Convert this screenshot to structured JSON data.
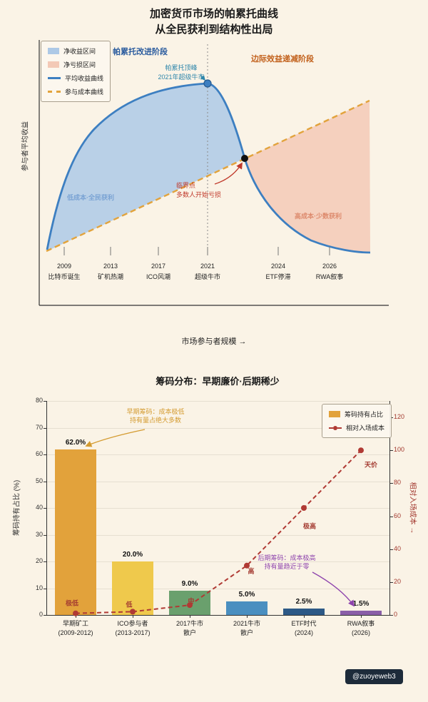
{
  "watermark": {
    "text": "@zuoyeweb3"
  },
  "chart_data": [
    {
      "type": "area",
      "title": "加密货币市场的帕累托曲线",
      "subtitle": "从全民获利到结构性出局",
      "xlabel": "市场参与者规模  →",
      "ylabel": "参与者平均收益",
      "legend": [
        "净收益区间",
        "净亏损区间",
        "平均收益曲线",
        "参与成本曲线"
      ],
      "regions": [
        {
          "name": "净收益区间",
          "color": "#adc9e6"
        },
        {
          "name": "净亏损区间",
          "color": "#f3c9b6"
        }
      ],
      "phase_labels": [
        {
          "text": "帕累托改进阶段",
          "color": "#2a5b9e"
        },
        {
          "text": "边际效益递减阶段",
          "color": "#c2611c"
        }
      ],
      "series": [
        {
          "name": "平均收益曲线",
          "style": "solid",
          "color": "#3d7fc1",
          "values_norm": [
            0.02,
            0.6,
            0.85,
            1.0,
            0.45,
            0.12
          ]
        },
        {
          "name": "参与成本曲线",
          "style": "dashed",
          "color": "#e2a33c",
          "values_norm": [
            0.0,
            0.18,
            0.36,
            0.55,
            0.75,
            0.95
          ]
        }
      ],
      "annotations": [
        {
          "text_lines": [
            "帕累托顶峰",
            "2021年超级牛市"
          ],
          "color": "#2e86ab"
        },
        {
          "text_lines": [
            "临界点",
            "多数人开始亏损"
          ],
          "color": "#c0392b"
        },
        {
          "text_lines": [
            "低成本·全民获利"
          ],
          "color": "#7aa3d4"
        },
        {
          "text_lines": [
            "高成本·少数获利"
          ],
          "color": "#dd8a6d"
        }
      ],
      "x_ticks": [
        {
          "year": "2009",
          "event": "比特币诞生"
        },
        {
          "year": "2013",
          "event": "矿机热潮"
        },
        {
          "year": "2017",
          "event": "ICO风潮"
        },
        {
          "year": "2021",
          "event": "超级牛市"
        },
        {
          "year": "2024",
          "event": "ETF停滞"
        },
        {
          "year": "2026",
          "event": "RWA叙事"
        }
      ]
    },
    {
      "type": "bar+line",
      "title": "筹码分布：早期廉价·后期稀少",
      "ylabel_left": "筹码持有占比 (%)",
      "ylabel_right": "相对入场成本 →",
      "ylim_left": [
        0,
        80
      ],
      "ylim_right": [
        0,
        130
      ],
      "yticks_left": [
        0,
        10,
        20,
        30,
        40,
        50,
        60,
        70,
        80
      ],
      "yticks_right": [
        0,
        20,
        40,
        60,
        80,
        100,
        120
      ],
      "legend": [
        "筹码持有占比",
        "相对入场成本"
      ],
      "categories": [
        [
          "早期矿工",
          "(2009-2012)"
        ],
        [
          "ICO参与者",
          "(2013-2017)"
        ],
        [
          "2017牛市",
          "散户"
        ],
        [
          "2021牛市",
          "散户"
        ],
        [
          "ETF时代",
          "(2024)"
        ],
        [
          "RWA叙事",
          "(2026)"
        ]
      ],
      "bar_series": {
        "name": "筹码持有占比",
        "values": [
          62.0,
          20.0,
          9.0,
          5.0,
          2.5,
          1.5
        ],
        "labels": [
          "62.0%",
          "20.0%",
          "9.0%",
          "5.0%",
          "2.5%",
          "1.5%"
        ],
        "colors": [
          "#e2a23b",
          "#efc94c",
          "#6aa06d",
          "#4a8fc0",
          "#2d5986",
          "#8a5fa8"
        ]
      },
      "line_series": {
        "name": "相对入场成本",
        "values": [
          1,
          2,
          6,
          30,
          65,
          100
        ],
        "point_labels": [
          "极低",
          "低",
          "中",
          "高",
          "极高",
          "天价"
        ],
        "color": "#b03a34"
      },
      "annotations": [
        {
          "text_lines": [
            "早期筹码：成本极低",
            "持有量占绝大多数"
          ],
          "color": "#d49b30"
        },
        {
          "text_lines": [
            "后期筹码：成本极高",
            "持有量趋近于零"
          ],
          "color": "#8e44ad"
        }
      ]
    }
  ]
}
